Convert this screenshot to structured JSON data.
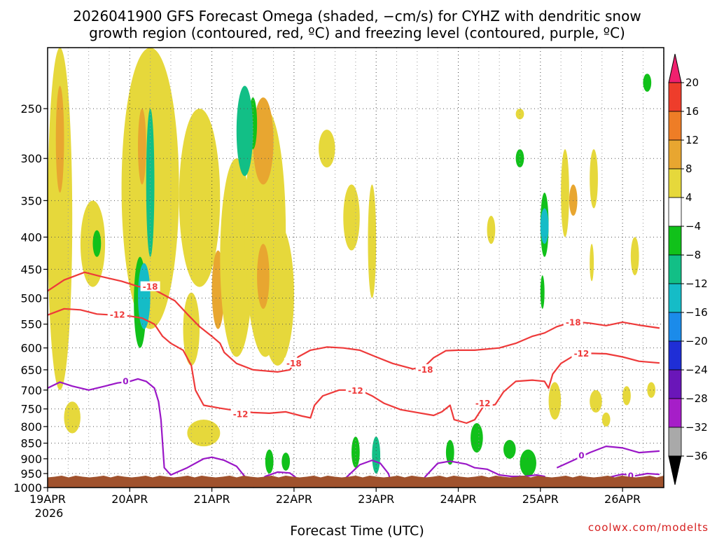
{
  "chart_data": {
    "type": "heatmap",
    "title_line1": "2026041900 GFS Forecast Omega (shaded, −cm/s) for CYHZ with dendritic snow",
    "title_line2": "growth region (contoured, red, ºC) and freezing level (contoured, purple, ºC)",
    "xlabel": "Forecast Time (UTC)",
    "credit": "coolwx.com/modelts",
    "x_ticks": [
      "19APR",
      "20APR",
      "21APR",
      "22APR",
      "23APR",
      "24APR",
      "25APR",
      "26APR"
    ],
    "x_year": "2026",
    "y_ticks": [
      250,
      300,
      350,
      400,
      450,
      500,
      550,
      600,
      650,
      700,
      750,
      800,
      850,
      900,
      950,
      1000
    ],
    "ylim": [
      1000,
      200
    ],
    "xlim_days": [
      0,
      7.5
    ],
    "grid": true,
    "colorbar": {
      "levels": [
        20,
        16,
        12,
        8,
        4,
        -4,
        -8,
        -12,
        -16,
        -20,
        -24,
        -28,
        -32,
        -36
      ],
      "colors": [
        "#f0206e",
        "#ee3d2b",
        "#ee7d26",
        "#e8a630",
        "#e6d83b",
        "#ffffff",
        "#11c11a",
        "#12bf86",
        "#15bcc7",
        "#1b8bea",
        "#1f2ed6",
        "#6a16b9",
        "#a61ec8",
        "#a9a9a9",
        "#000000"
      ]
    },
    "dgz_contours": [
      {
        "label": "-18",
        "points": [
          [
            0,
            487
          ],
          [
            0.2,
            468
          ],
          [
            0.45,
            455
          ],
          [
            0.65,
            462
          ],
          [
            0.9,
            470
          ],
          [
            1.1,
            479
          ],
          [
            1.3,
            485
          ],
          [
            1.55,
            505
          ],
          [
            1.7,
            530
          ],
          [
            1.85,
            555
          ],
          [
            2.0,
            575
          ],
          [
            2.1,
            590
          ],
          [
            2.15,
            610
          ],
          [
            2.3,
            635
          ],
          [
            2.5,
            650
          ],
          [
            2.8,
            655
          ],
          [
            2.95,
            650
          ],
          [
            3.05,
            620
          ],
          [
            3.2,
            605
          ],
          [
            3.4,
            598
          ],
          [
            3.6,
            600
          ],
          [
            3.8,
            605
          ],
          [
            4.0,
            620
          ],
          [
            4.2,
            635
          ],
          [
            4.45,
            648
          ],
          [
            4.6,
            640
          ],
          [
            4.7,
            622
          ],
          [
            4.85,
            606
          ],
          [
            5.0,
            605
          ],
          [
            5.2,
            605
          ],
          [
            5.5,
            600
          ],
          [
            5.7,
            590
          ],
          [
            5.9,
            575
          ],
          [
            6.05,
            568
          ],
          [
            6.2,
            555
          ],
          [
            6.4,
            545
          ],
          [
            6.6,
            548
          ],
          [
            6.8,
            553
          ],
          [
            7.0,
            546
          ],
          [
            7.2,
            552
          ],
          [
            7.45,
            558
          ]
        ]
      },
      {
        "label": "-12",
        "points": [
          [
            0,
            532
          ],
          [
            0.2,
            520
          ],
          [
            0.4,
            522
          ],
          [
            0.6,
            530
          ],
          [
            0.8,
            532
          ],
          [
            1.0,
            534
          ],
          [
            1.15,
            538
          ],
          [
            1.3,
            550
          ],
          [
            1.4,
            575
          ],
          [
            1.5,
            590
          ],
          [
            1.65,
            605
          ],
          [
            1.75,
            640
          ],
          [
            1.8,
            700
          ],
          [
            1.9,
            740
          ],
          [
            2.1,
            748
          ],
          [
            2.3,
            755
          ],
          [
            2.5,
            760
          ],
          [
            2.7,
            762
          ],
          [
            2.9,
            758
          ],
          [
            3.1,
            770
          ],
          [
            3.2,
            775
          ],
          [
            3.25,
            740
          ],
          [
            3.35,
            715
          ],
          [
            3.55,
            700
          ],
          [
            3.8,
            700
          ],
          [
            3.95,
            715
          ],
          [
            4.1,
            735
          ],
          [
            4.3,
            752
          ],
          [
            4.5,
            760
          ],
          [
            4.7,
            768
          ],
          [
            4.8,
            758
          ],
          [
            4.9,
            740
          ],
          [
            4.95,
            780
          ],
          [
            5.1,
            790
          ],
          [
            5.2,
            780
          ],
          [
            5.3,
            745
          ],
          [
            5.45,
            738
          ],
          [
            5.55,
            705
          ],
          [
            5.7,
            678
          ],
          [
            5.9,
            675
          ],
          [
            6.05,
            678
          ],
          [
            6.1,
            695
          ],
          [
            6.15,
            660
          ],
          [
            6.25,
            635
          ],
          [
            6.4,
            618
          ],
          [
            6.6,
            612
          ],
          [
            6.8,
            613
          ],
          [
            7.0,
            620
          ],
          [
            7.2,
            630
          ],
          [
            7.45,
            634
          ]
        ]
      }
    ],
    "freezing_contours": [
      {
        "label": "0",
        "points": [
          [
            0,
            695
          ],
          [
            0.15,
            680
          ],
          [
            0.3,
            690
          ],
          [
            0.5,
            700
          ],
          [
            0.7,
            690
          ],
          [
            0.85,
            682
          ],
          [
            1.0,
            678
          ],
          [
            1.1,
            672
          ],
          [
            1.2,
            678
          ],
          [
            1.3,
            695
          ],
          [
            1.35,
            730
          ],
          [
            1.38,
            780
          ],
          [
            1.4,
            850
          ],
          [
            1.42,
            930
          ],
          [
            1.5,
            955
          ],
          [
            1.7,
            930
          ],
          [
            1.9,
            900
          ],
          [
            2.0,
            895
          ],
          [
            2.15,
            905
          ],
          [
            2.3,
            925
          ],
          [
            2.4,
            960
          ],
          [
            2.45,
            1000
          ]
        ]
      },
      {
        "label": "",
        "points": [
          [
            2.5,
            1000
          ],
          [
            2.65,
            960
          ],
          [
            2.8,
            945
          ],
          [
            2.95,
            948
          ],
          [
            3.05,
            970
          ],
          [
            3.1,
            1000
          ]
        ]
      },
      {
        "label": "",
        "points": [
          [
            3.5,
            1000
          ],
          [
            3.65,
            960
          ],
          [
            3.8,
            920
          ],
          [
            3.95,
            905
          ],
          [
            4.05,
            915
          ],
          [
            4.15,
            950
          ],
          [
            4.2,
            1000
          ]
        ]
      },
      {
        "label": "",
        "points": [
          [
            4.5,
            1000
          ],
          [
            4.6,
            960
          ],
          [
            4.75,
            915
          ],
          [
            4.9,
            908
          ],
          [
            5.1,
            918
          ],
          [
            5.2,
            930
          ],
          [
            5.35,
            935
          ],
          [
            5.5,
            955
          ],
          [
            5.65,
            960
          ],
          [
            5.8,
            960
          ],
          [
            5.95,
            955
          ],
          [
            6.05,
            960
          ],
          [
            6.1,
            1000
          ]
        ]
      },
      {
        "label": "0",
        "points": [
          [
            6.2,
            930
          ],
          [
            6.4,
            905
          ],
          [
            6.6,
            880
          ],
          [
            6.8,
            860
          ],
          [
            7.0,
            865
          ],
          [
            7.2,
            880
          ],
          [
            7.45,
            875
          ]
        ]
      },
      {
        "label": "0",
        "points": [
          [
            6.3,
            985
          ],
          [
            6.6,
            975
          ],
          [
            6.85,
            962
          ],
          [
            7.0,
            952
          ],
          [
            7.15,
            958
          ],
          [
            7.3,
            950
          ],
          [
            7.45,
            953
          ]
        ]
      }
    ],
    "omega_regions": [
      {
        "value": 6,
        "x": [
          0.0,
          0.3
        ],
        "p": [
          200,
          700
        ]
      },
      {
        "value": 10,
        "x": [
          0.1,
          0.2
        ],
        "p": [
          230,
          340
        ]
      },
      {
        "value": 6,
        "x": [
          0.4,
          0.7
        ],
        "p": [
          350,
          480
        ]
      },
      {
        "value": 6,
        "x": [
          0.9,
          1.6
        ],
        "p": [
          200,
          560
        ]
      },
      {
        "value": 10,
        "x": [
          1.1,
          1.2
        ],
        "p": [
          250,
          330
        ]
      },
      {
        "value": -6,
        "x": [
          1.05,
          1.2
        ],
        "p": [
          430,
          600
        ]
      },
      {
        "value": -14,
        "x": [
          1.1,
          1.25
        ],
        "p": [
          440,
          560
        ]
      },
      {
        "value": -10,
        "x": [
          1.2,
          1.3
        ],
        "p": [
          250,
          430
        ]
      },
      {
        "value": -6,
        "x": [
          0.55,
          0.65
        ],
        "p": [
          390,
          430
        ]
      },
      {
        "value": 6,
        "x": [
          1.6,
          2.1
        ],
        "p": [
          250,
          480
        ]
      },
      {
        "value": 6,
        "x": [
          1.65,
          1.85
        ],
        "p": [
          490,
          640
        ]
      },
      {
        "value": 10,
        "x": [
          2.0,
          2.15
        ],
        "p": [
          420,
          560
        ]
      },
      {
        "value": 6,
        "x": [
          2.1,
          2.5
        ],
        "p": [
          300,
          620
        ]
      },
      {
        "value": 6,
        "x": [
          2.4,
          2.9
        ],
        "p": [
          250,
          620
        ]
      },
      {
        "value": 10,
        "x": [
          2.5,
          2.75
        ],
        "p": [
          240,
          330
        ]
      },
      {
        "value": -6,
        "x": [
          2.45,
          2.55
        ],
        "p": [
          240,
          290
        ]
      },
      {
        "value": -12,
        "x": [
          2.3,
          2.5
        ],
        "p": [
          230,
          320
        ]
      },
      {
        "value": 6,
        "x": [
          2.6,
          3.0
        ],
        "p": [
          380,
          640
        ]
      },
      {
        "value": 10,
        "x": [
          2.55,
          2.7
        ],
        "p": [
          410,
          520
        ]
      },
      {
        "value": 6,
        "x": [
          3.3,
          3.5
        ],
        "p": [
          270,
          310
        ]
      },
      {
        "value": 6,
        "x": [
          3.6,
          3.8
        ],
        "p": [
          330,
          420
        ]
      },
      {
        "value": 6,
        "x": [
          3.9,
          4.0
        ],
        "p": [
          330,
          500
        ]
      },
      {
        "value": 6,
        "x": [
          0.2,
          0.4
        ],
        "p": [
          730,
          820
        ]
      },
      {
        "value": 6,
        "x": [
          1.7,
          2.1
        ],
        "p": [
          780,
          860
        ]
      },
      {
        "value": -8,
        "x": [
          2.65,
          2.75
        ],
        "p": [
          870,
          950
        ]
      },
      {
        "value": -8,
        "x": [
          2.85,
          2.95
        ],
        "p": [
          880,
          940
        ]
      },
      {
        "value": -8,
        "x": [
          3.7,
          3.8
        ],
        "p": [
          830,
          930
        ]
      },
      {
        "value": -10,
        "x": [
          3.95,
          4.05
        ],
        "p": [
          830,
          950
        ]
      },
      {
        "value": -8,
        "x": [
          4.85,
          4.95
        ],
        "p": [
          840,
          920
        ]
      },
      {
        "value": -8,
        "x": [
          5.15,
          5.3
        ],
        "p": [
          790,
          880
        ]
      },
      {
        "value": -8,
        "x": [
          5.55,
          5.7
        ],
        "p": [
          840,
          900
        ]
      },
      {
        "value": -8,
        "x": [
          5.75,
          5.95
        ],
        "p": [
          870,
          960
        ]
      },
      {
        "value": -8,
        "x": [
          6.0,
          6.1
        ],
        "p": [
          340,
          430
        ]
      },
      {
        "value": -14,
        "x": [
          6.0,
          6.1
        ],
        "p": [
          360,
          410
        ]
      },
      {
        "value": -8,
        "x": [
          6.0,
          6.05
        ],
        "p": [
          460,
          520
        ]
      },
      {
        "value": -8,
        "x": [
          5.7,
          5.8
        ],
        "p": [
          290,
          310
        ]
      },
      {
        "value": 6,
        "x": [
          5.7,
          5.8
        ],
        "p": [
          250,
          260
        ]
      },
      {
        "value": 6,
        "x": [
          6.25,
          6.35
        ],
        "p": [
          290,
          400
        ]
      },
      {
        "value": 10,
        "x": [
          6.35,
          6.45
        ],
        "p": [
          330,
          370
        ]
      },
      {
        "value": 6,
        "x": [
          6.6,
          6.7
        ],
        "p": [
          290,
          360
        ]
      },
      {
        "value": 6,
        "x": [
          6.6,
          6.65
        ],
        "p": [
          410,
          470
        ]
      },
      {
        "value": 6,
        "x": [
          7.1,
          7.2
        ],
        "p": [
          400,
          460
        ]
      },
      {
        "value": -8,
        "x": [
          7.25,
          7.35
        ],
        "p": [
          220,
          235
        ]
      },
      {
        "value": 6,
        "x": [
          6.1,
          6.25
        ],
        "p": [
          680,
          780
        ]
      },
      {
        "value": 6,
        "x": [
          6.6,
          6.75
        ],
        "p": [
          700,
          760
        ]
      },
      {
        "value": 6,
        "x": [
          6.75,
          6.85
        ],
        "p": [
          760,
          800
        ]
      },
      {
        "value": 6,
        "x": [
          7.0,
          7.1
        ],
        "p": [
          690,
          740
        ]
      },
      {
        "value": 6,
        "x": [
          7.3,
          7.4
        ],
        "p": [
          680,
          720
        ]
      },
      {
        "value": 6,
        "x": [
          5.35,
          5.45
        ],
        "p": [
          370,
          410
        ]
      }
    ]
  }
}
